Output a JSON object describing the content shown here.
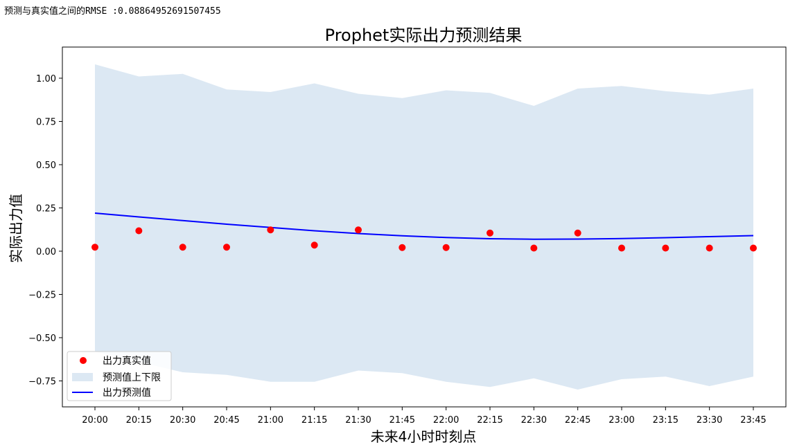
{
  "header_text": {
    "label": "预测与真实值之间的RMSE",
    "value": " :0.08864952691507455"
  },
  "chart_data": {
    "type": "line",
    "title": "Prophet实际出力预测结果",
    "xlabel": "未来4小时时刻点",
    "ylabel": "实际出力值",
    "categories": [
      "20:00",
      "20:15",
      "20:30",
      "20:45",
      "21:00",
      "21:15",
      "21:30",
      "21:45",
      "22:00",
      "22:15",
      "22:30",
      "22:45",
      "23:00",
      "23:15",
      "23:30",
      "23:45"
    ],
    "ylim": [
      -0.9,
      1.18
    ],
    "yticks": [
      1.0,
      0.75,
      0.5,
      0.25,
      0.0,
      -0.25,
      -0.5,
      -0.75
    ],
    "ytick_labels": [
      "1.00",
      "0.75",
      "0.50",
      "0.25",
      "0.00",
      "−0.25",
      "−0.50",
      "−0.75"
    ],
    "series": [
      {
        "name": "出力真实值",
        "kind": "scatter",
        "color": "#ff0000",
        "values": [
          0.023,
          0.118,
          0.023,
          0.023,
          0.123,
          0.035,
          0.123,
          0.021,
          0.021,
          0.105,
          0.018,
          0.105,
          0.018,
          0.018,
          0.018,
          0.018
        ]
      },
      {
        "name": "出力预测值",
        "kind": "line",
        "color": "#0000ff",
        "values": [
          0.22,
          0.198,
          0.177,
          0.156,
          0.137,
          0.118,
          0.102,
          0.089,
          0.079,
          0.072,
          0.069,
          0.07,
          0.073,
          0.078,
          0.084,
          0.09
        ]
      },
      {
        "name": "预测值上下限",
        "kind": "band",
        "color": "#dce8f3",
        "upper": [
          1.08,
          1.01,
          1.025,
          0.935,
          0.92,
          0.97,
          0.91,
          0.885,
          0.93,
          0.915,
          0.84,
          0.94,
          0.955,
          0.925,
          0.905,
          0.94
        ],
        "lower": [
          -0.58,
          -0.64,
          -0.7,
          -0.715,
          -0.755,
          -0.755,
          -0.69,
          -0.705,
          -0.755,
          -0.785,
          -0.735,
          -0.8,
          -0.74,
          -0.725,
          -0.78,
          -0.725
        ]
      }
    ],
    "legend": {
      "placement": "lower-left",
      "entries": [
        "出力真实值",
        "预测值上下限",
        "出力预测值"
      ]
    },
    "grid": false
  }
}
